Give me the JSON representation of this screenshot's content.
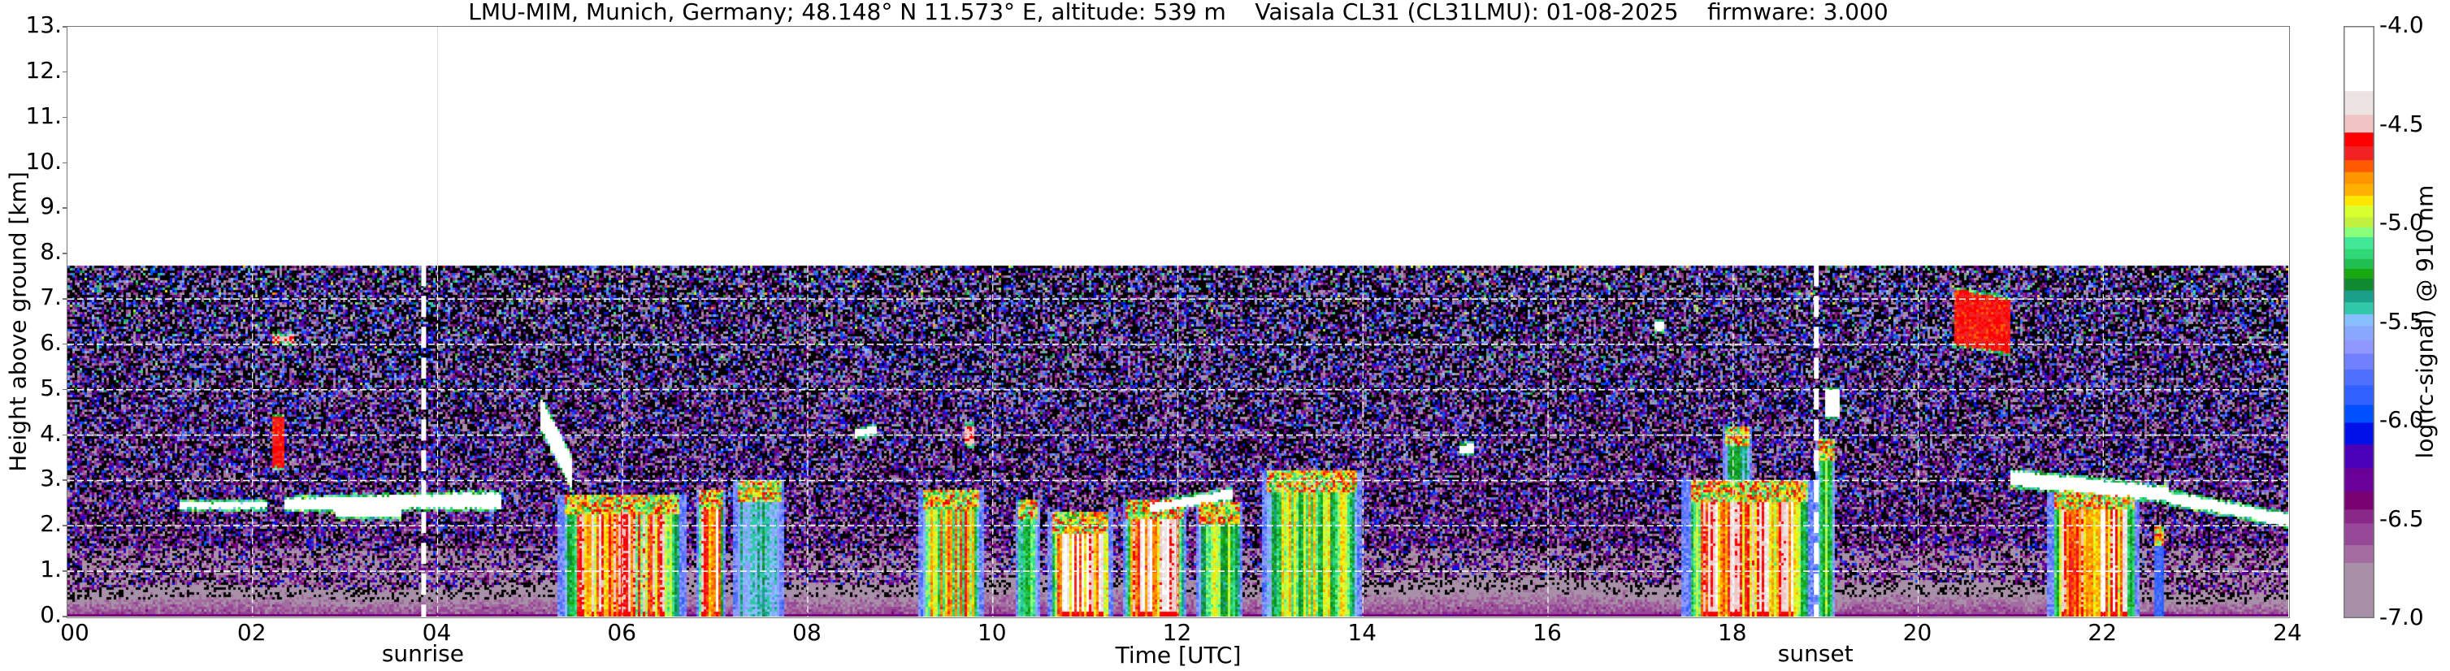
{
  "chart_data": {
    "type": "heatmap",
    "title": "LMU-MIM, Munich, Germany; 48.148° N 11.573° E, altitude: 539 m    Vaisala CL31 (CL31LMU): 01-08-2025    firmware: 3.000",
    "xlabel": "Time [UTC]",
    "ylabel": "Height above ground [km]",
    "xlim": [
      0,
      24
    ],
    "ylim": [
      0,
      13
    ],
    "xticks": [
      {
        "value": 0,
        "label": "00"
      },
      {
        "value": 2,
        "label": "02"
      },
      {
        "value": 4,
        "label": "04"
      },
      {
        "value": 6,
        "label": "06"
      },
      {
        "value": 8,
        "label": "08"
      },
      {
        "value": 10,
        "label": "10"
      },
      {
        "value": 12,
        "label": "12"
      },
      {
        "value": 14,
        "label": "14"
      },
      {
        "value": 16,
        "label": "16"
      },
      {
        "value": 18,
        "label": "18"
      },
      {
        "value": 20,
        "label": "20"
      },
      {
        "value": 22,
        "label": "22"
      },
      {
        "value": 24,
        "label": "24"
      }
    ],
    "yticks": [
      {
        "value": 0,
        "label": "0."
      },
      {
        "value": 1,
        "label": "1."
      },
      {
        "value": 2,
        "label": "2."
      },
      {
        "value": 3,
        "label": "3."
      },
      {
        "value": 4,
        "label": "4."
      },
      {
        "value": 5,
        "label": "5."
      },
      {
        "value": 6,
        "label": "6."
      },
      {
        "value": 7,
        "label": "7."
      },
      {
        "value": 8,
        "label": "8."
      },
      {
        "value": 9,
        "label": "9."
      },
      {
        "value": 10,
        "label": "10."
      },
      {
        "value": 11,
        "label": "11."
      },
      {
        "value": 12,
        "label": "12."
      },
      {
        "value": 13,
        "label": "13."
      }
    ],
    "grid": true,
    "data_top_km": 7.75,
    "annotations": [
      {
        "label": "sunrise",
        "time": 3.85
      },
      {
        "label": "sunset",
        "time": 18.9
      }
    ],
    "colorbar": {
      "label": "log(rc-signal) @ 910 nm",
      "range": [
        -7.0,
        -4.0
      ],
      "ticks": [
        {
          "value": -4.0,
          "label": "-4.0"
        },
        {
          "value": -4.5,
          "label": "-4.5"
        },
        {
          "value": -5.0,
          "label": "-5.0"
        },
        {
          "value": -5.5,
          "label": "-5.5"
        },
        {
          "value": -6.0,
          "label": "-6.0"
        },
        {
          "value": -6.5,
          "label": "-6.5"
        },
        {
          "value": -7.0,
          "label": "-7.0"
        }
      ],
      "levels": [
        {
          "from": -4.33,
          "to": -4.0,
          "color": "#ffffff"
        },
        {
          "from": -4.45,
          "to": -4.33,
          "color": "#ede3e3"
        },
        {
          "from": -4.54,
          "to": -4.45,
          "color": "#f0c4c4"
        },
        {
          "from": -4.61,
          "to": -4.54,
          "color": "#ff0000"
        },
        {
          "from": -4.68,
          "to": -4.61,
          "color": "#f02222"
        },
        {
          "from": -4.74,
          "to": -4.68,
          "color": "#ff5a00"
        },
        {
          "from": -4.8,
          "to": -4.74,
          "color": "#ff9600"
        },
        {
          "from": -4.86,
          "to": -4.8,
          "color": "#ffb000"
        },
        {
          "from": -4.91,
          "to": -4.86,
          "color": "#ffe600"
        },
        {
          "from": -4.97,
          "to": -4.91,
          "color": "#d8ff30"
        },
        {
          "from": -5.02,
          "to": -4.97,
          "color": "#c0f040"
        },
        {
          "from": -5.07,
          "to": -5.02,
          "color": "#8aff7a"
        },
        {
          "from": -5.13,
          "to": -5.07,
          "color": "#40e898"
        },
        {
          "from": -5.18,
          "to": -5.13,
          "color": "#30d878"
        },
        {
          "from": -5.23,
          "to": -5.18,
          "color": "#20c050"
        },
        {
          "from": -5.28,
          "to": -5.23,
          "color": "#18a810"
        },
        {
          "from": -5.34,
          "to": -5.28,
          "color": "#108a30"
        },
        {
          "from": -5.4,
          "to": -5.34,
          "color": "#1aa08a"
        },
        {
          "from": -5.46,
          "to": -5.4,
          "color": "#30c8a8"
        },
        {
          "from": -5.52,
          "to": -5.46,
          "color": "#88c0ff"
        },
        {
          "from": -5.59,
          "to": -5.52,
          "color": "#88a8ff"
        },
        {
          "from": -5.66,
          "to": -5.59,
          "color": "#9098ff"
        },
        {
          "from": -5.74,
          "to": -5.66,
          "color": "#7080ff"
        },
        {
          "from": -5.82,
          "to": -5.74,
          "color": "#5070ff"
        },
        {
          "from": -5.92,
          "to": -5.82,
          "color": "#3060ff"
        },
        {
          "from": -6.01,
          "to": -5.92,
          "color": "#0050ff"
        },
        {
          "from": -6.12,
          "to": -6.01,
          "color": "#0010e8"
        },
        {
          "from": -6.24,
          "to": -6.12,
          "color": "#4a00b8"
        },
        {
          "from": -6.36,
          "to": -6.24,
          "color": "#6a0098"
        },
        {
          "from": -6.45,
          "to": -6.36,
          "color": "#780070"
        },
        {
          "from": -6.52,
          "to": -6.45,
          "color": "#882888"
        },
        {
          "from": -6.63,
          "to": -6.52,
          "color": "#984898"
        },
        {
          "from": -6.72,
          "to": -6.63,
          "color": "#a46ca0"
        },
        {
          "from": -7.0,
          "to": -6.72,
          "color": "#a890a8"
        }
      ]
    },
    "features": {
      "cloud_layers": [
        {
          "t0": 1.2,
          "t1": 2.15,
          "h_base": 2.38,
          "h_top": 2.52,
          "h_base_end": 2.38,
          "h_top_end": 2.52,
          "value": -4.0
        },
        {
          "t0": 2.35,
          "t1": 4.7,
          "h_base": 2.35,
          "h_top": 2.6,
          "h_base_end": 2.4,
          "h_top_end": 2.72,
          "value": -4.0
        },
        {
          "t0": 2.9,
          "t1": 3.6,
          "h_base": 2.2,
          "h_top": 2.38,
          "h_base_end": 2.2,
          "h_top_end": 2.38,
          "value": -4.0
        },
        {
          "t0": 2.2,
          "t1": 2.35,
          "h_base": 3.3,
          "h_top": 4.4,
          "h_base_end": 3.3,
          "h_top_end": 4.4,
          "value": -4.7
        },
        {
          "t0": 2.2,
          "t1": 2.45,
          "h_base": 6.05,
          "h_top": 6.2,
          "h_base_end": 6.05,
          "h_top_end": 6.2,
          "value": -4.6
        },
        {
          "t0": 5.1,
          "t1": 5.45,
          "h_base": 4.2,
          "h_top": 4.9,
          "h_base_end": 2.8,
          "h_top_end": 3.5,
          "value": -4.1
        },
        {
          "t0": 8.5,
          "t1": 8.75,
          "h_base": 3.95,
          "h_top": 4.1,
          "h_base_end": 4.05,
          "h_top_end": 4.2,
          "value": -4.0
        },
        {
          "t0": 9.7,
          "t1": 9.8,
          "h_base": 3.8,
          "h_top": 4.2,
          "h_base_end": 3.8,
          "h_top_end": 4.2,
          "value": -4.6
        },
        {
          "t0": 11.7,
          "t1": 12.6,
          "h_base": 2.3,
          "h_top": 2.5,
          "h_base_end": 2.6,
          "h_top_end": 2.8,
          "value": -4.0
        },
        {
          "t0": 15.05,
          "t1": 15.2,
          "h_base": 3.6,
          "h_top": 3.8,
          "h_base_end": 3.6,
          "h_top_end": 3.8,
          "value": -4.0
        },
        {
          "t0": 17.15,
          "t1": 17.25,
          "h_base": 6.3,
          "h_top": 6.5,
          "h_base_end": 6.3,
          "h_top_end": 6.5,
          "value": -4.3
        },
        {
          "t0": 19.0,
          "t1": 19.15,
          "h_base": 4.4,
          "h_top": 5.0,
          "h_base_end": 4.4,
          "h_top_end": 5.0,
          "value": -4.0
        },
        {
          "t0": 20.4,
          "t1": 21.0,
          "h_base": 6.0,
          "h_top": 7.2,
          "h_base_end": 5.8,
          "h_top_end": 7.0,
          "value": -4.7
        },
        {
          "t0": 21.0,
          "t1": 22.7,
          "h_base": 2.9,
          "h_top": 3.2,
          "h_base_end": 2.55,
          "h_top_end": 2.85,
          "value": -4.0
        },
        {
          "t0": 22.7,
          "t1": 24.0,
          "h_base": 2.5,
          "h_top": 2.75,
          "h_base_end": 2.0,
          "h_top_end": 2.25,
          "value": -4.0
        }
      ],
      "precipitation_columns": [
        {
          "t0": 5.3,
          "t1": 6.7,
          "h_top": 2.7,
          "core": -4.4
        },
        {
          "t0": 6.8,
          "t1": 7.1,
          "h_top": 2.8,
          "core": -4.1
        },
        {
          "t0": 7.2,
          "t1": 7.75,
          "h_top": 3.0,
          "core": -5.3
        },
        {
          "t0": 9.2,
          "t1": 9.9,
          "h_top": 2.8,
          "core": -4.6
        },
        {
          "t0": 10.25,
          "t1": 10.5,
          "h_top": 2.6,
          "core": -5.0
        },
        {
          "t0": 10.6,
          "t1": 11.3,
          "h_top": 2.3,
          "core": -4.1
        },
        {
          "t0": 11.4,
          "t1": 12.1,
          "h_top": 2.6,
          "core": -4.2
        },
        {
          "t0": 12.2,
          "t1": 12.7,
          "h_top": 2.5,
          "core": -4.9
        },
        {
          "t0": 12.9,
          "t1": 14.0,
          "h_top": 3.2,
          "core": -4.8
        },
        {
          "t0": 17.45,
          "t1": 18.9,
          "h_top": 3.0,
          "core": -4.3
        },
        {
          "t0": 17.9,
          "t1": 18.2,
          "h_top": 4.2,
          "core": -5.2
        },
        {
          "t0": 18.9,
          "t1": 19.1,
          "h_top": 3.9,
          "core": -5.0
        },
        {
          "t0": 21.4,
          "t1": 22.4,
          "h_top": 2.8,
          "core": -4.2
        },
        {
          "t0": 22.55,
          "t1": 22.65,
          "h_top": 2.0,
          "core": -5.8
        }
      ]
    }
  }
}
